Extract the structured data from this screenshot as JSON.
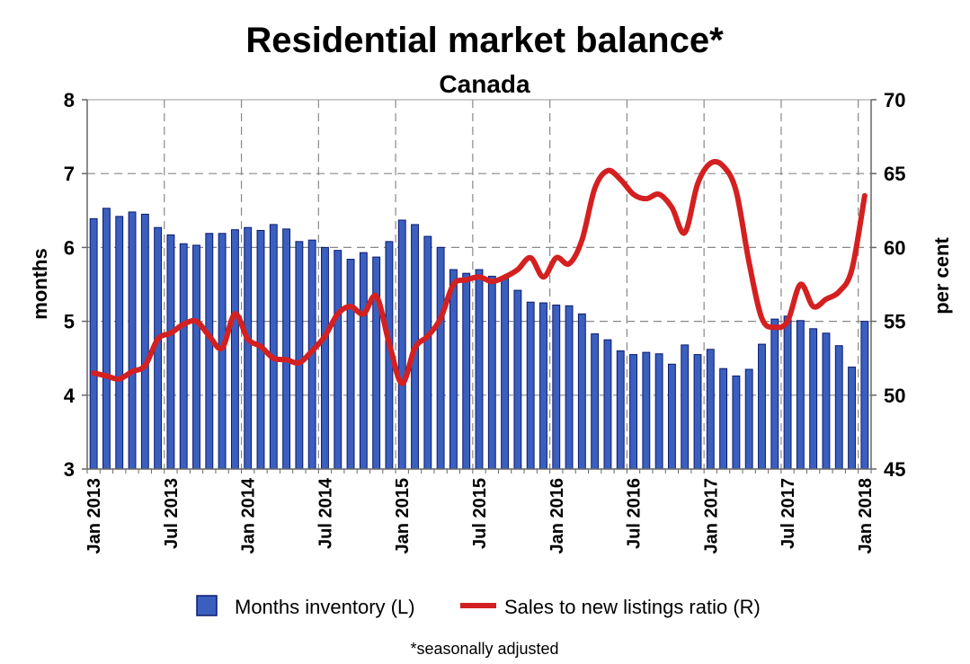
{
  "chart_data": {
    "type": "bar",
    "title": "Residential market balance*",
    "subtitle": "Canada",
    "ylabel_left": "months",
    "ylabel_right": "per cent",
    "ylim_left": [
      3,
      8
    ],
    "ylim_right": [
      45,
      70
    ],
    "yticks_left": [
      "3",
      "4",
      "5",
      "6",
      "7",
      "8"
    ],
    "yticks_right": [
      "45",
      "50",
      "55",
      "60",
      "65",
      "70"
    ],
    "xtick_labels": [
      "Jan 2013",
      "Jul 2013",
      "Jan 2014",
      "Jul 2014",
      "Jan 2015",
      "Jul 2015",
      "Jan 2016",
      "Jul 2016",
      "Jan 2017",
      "Jul 2017",
      "Jan 2018"
    ],
    "grid": true,
    "legend_position": "bottom",
    "footnote": "*seasonally adjusted",
    "series": [
      {
        "name": "Months inventory (L)",
        "type": "bar",
        "axis": "left",
        "color": "#3a5fbf",
        "edge_color": "#0a1a6e",
        "values": [
          6.39,
          6.53,
          6.42,
          6.48,
          6.45,
          6.27,
          6.17,
          6.05,
          6.03,
          6.19,
          6.19,
          6.24,
          6.27,
          6.23,
          6.31,
          6.25,
          6.08,
          6.1,
          6.0,
          5.96,
          5.84,
          5.93,
          5.87,
          6.08,
          6.37,
          6.31,
          6.15,
          6.0,
          5.7,
          5.65,
          5.7,
          5.61,
          5.6,
          5.42,
          5.26,
          5.25,
          5.22,
          5.21,
          5.1,
          4.83,
          4.75,
          4.6,
          4.55,
          4.58,
          4.56,
          4.42,
          4.68,
          4.55,
          4.62,
          4.36,
          4.26,
          4.35,
          4.69,
          5.03,
          5.07,
          5.01,
          4.9,
          4.84,
          4.67,
          4.38,
          5.0
        ]
      },
      {
        "name": "Sales to new listings ratio (R)",
        "type": "line",
        "axis": "right",
        "color": "#d42020",
        "values": [
          51.5,
          51.3,
          51.1,
          51.6,
          52.0,
          53.8,
          54.2,
          54.8,
          55.0,
          54.0,
          53.2,
          55.5,
          53.8,
          53.3,
          52.5,
          52.4,
          52.2,
          53.0,
          54.0,
          55.5,
          56.0,
          55.5,
          56.7,
          53.5,
          50.8,
          53.2,
          54.0,
          55.2,
          57.5,
          57.8,
          58.0,
          57.7,
          58.0,
          58.5,
          59.3,
          58.0,
          59.3,
          58.9,
          60.5,
          64.0,
          65.2,
          64.6,
          63.6,
          63.3,
          63.6,
          62.7,
          61.0,
          64.3,
          65.7,
          65.5,
          63.8,
          59.0,
          55.2,
          54.6,
          55.0,
          57.5,
          56.0,
          56.5,
          57.0,
          58.5,
          63.5
        ]
      }
    ]
  }
}
